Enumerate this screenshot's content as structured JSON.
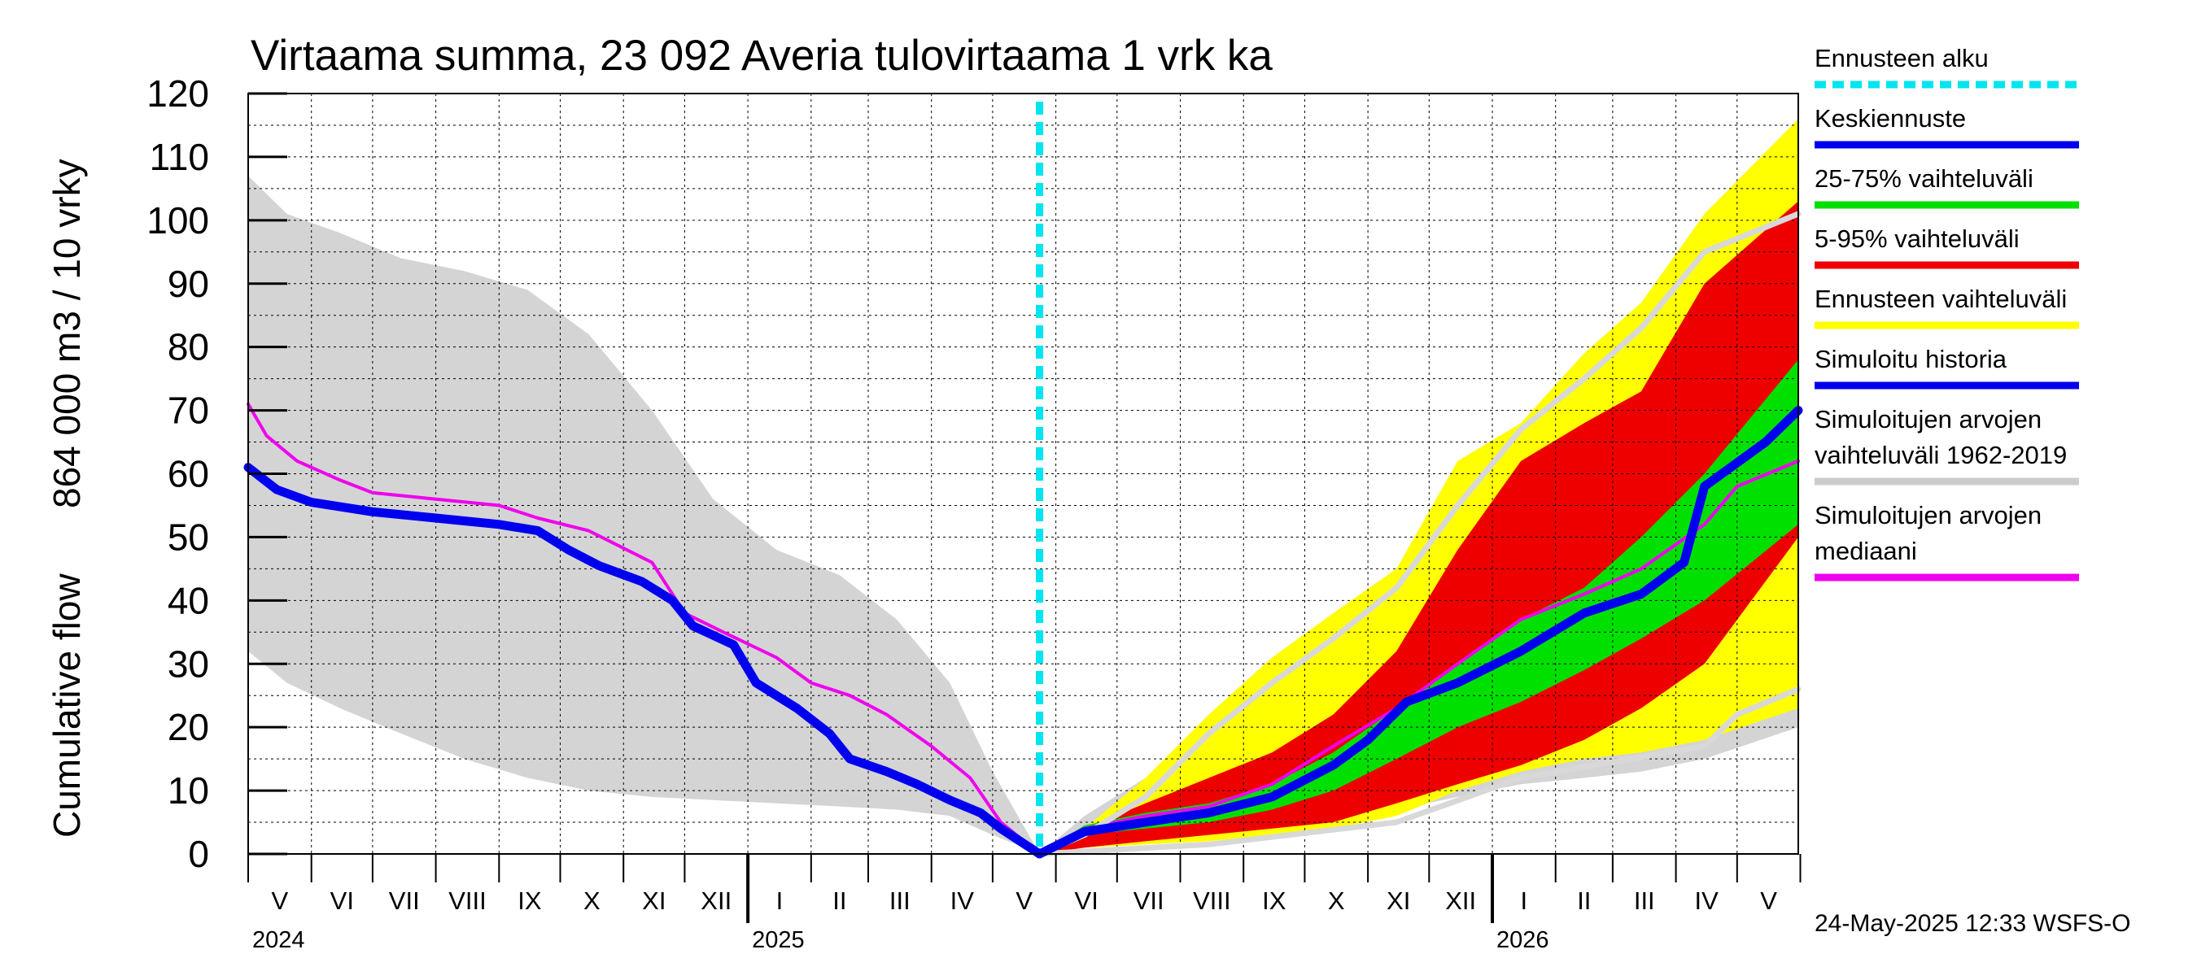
{
  "chart_data": {
    "type": "area",
    "title": "Virtaama summa, 23 092 Averia tulovirtaama 1 vrk ka",
    "ylabel_left": "Cumulative flow",
    "ylabel_right": "864 000 m3 / 10 vrky",
    "ylim": [
      0,
      120
    ],
    "y_ticks": [
      "0",
      "10",
      "20",
      "30",
      "40",
      "50",
      "60",
      "70",
      "80",
      "90",
      "100",
      "110",
      "120"
    ],
    "grid": true,
    "x_start": "2024-05-01",
    "x_end": "2026-05-31",
    "forecast_start": "2025-05-24",
    "month_labels": [
      "V",
      "VI",
      "VII",
      "VIII",
      "IX",
      "X",
      "XI",
      "XII",
      "I",
      "II",
      "III",
      "IV",
      "V",
      "VI",
      "VII",
      "VIII",
      "IX",
      "X",
      "XI",
      "XII",
      "I",
      "II",
      "III",
      "IV",
      "V"
    ],
    "year_labels": [
      "2024",
      "2025",
      "2026"
    ],
    "legend_position": "right",
    "legend": [
      {
        "label": "Ennusteen alku",
        "color": "#00e5f0",
        "style": "dashed"
      },
      {
        "label": "Keskiennuste",
        "color": "#0000ee",
        "style": "solid"
      },
      {
        "label": "25-75% vaihteluväli",
        "color": "#00e000",
        "style": "solid"
      },
      {
        "label": "5-95% vaihteluväli",
        "color": "#ee0000",
        "style": "solid"
      },
      {
        "label": "Ennusteen vaihteluväli",
        "color": "#ffff00",
        "style": "solid"
      },
      {
        "label": "Simuloitu historia",
        "color": "#0000ee",
        "style": "solid"
      },
      {
        "label": "Simuloitujen arvojen vaihteluväli 1962-2019",
        "line1": "Simuloitujen arvojen",
        "line2": "vaihteluväli 1962-2019",
        "color": "#cccccc",
        "style": "solid"
      },
      {
        "label": "Simuloitujen arvojen mediaani",
        "line1": "Simuloitujen arvojen",
        "line2": "mediaani",
        "color": "#ee00ee",
        "style": "solid"
      }
    ],
    "series": [
      {
        "name": "Simuloitujen arvojen vaihteluväli 1962-2019",
        "kind": "band",
        "color": "#d4d4d4",
        "points": [
          {
            "x": "2024-05-01",
            "low": 32,
            "high": 107
          },
          {
            "x": "2024-05-20",
            "low": 27,
            "high": 101
          },
          {
            "x": "2024-06-15",
            "low": 23,
            "high": 98
          },
          {
            "x": "2024-07-15",
            "low": 19,
            "high": 94
          },
          {
            "x": "2024-08-15",
            "low": 15,
            "high": 92
          },
          {
            "x": "2024-09-15",
            "low": 12,
            "high": 89
          },
          {
            "x": "2024-10-15",
            "low": 10,
            "high": 82
          },
          {
            "x": "2024-11-15",
            "low": 9,
            "high": 70
          },
          {
            "x": "2024-12-15",
            "low": 8.5,
            "high": 56
          },
          {
            "x": "2025-01-15",
            "low": 8,
            "high": 48
          },
          {
            "x": "2025-02-15",
            "low": 7.5,
            "high": 44
          },
          {
            "x": "2025-03-15",
            "low": 7,
            "high": 37
          },
          {
            "x": "2025-04-10",
            "low": 6,
            "high": 27
          },
          {
            "x": "2025-05-01",
            "low": 3,
            "high": 13
          },
          {
            "x": "2025-05-24",
            "low": 0,
            "high": 0
          },
          {
            "x": "2025-06-15",
            "low": 1,
            "high": 6
          },
          {
            "x": "2025-07-15",
            "low": 2,
            "high": 12
          },
          {
            "x": "2025-08-15",
            "low": 3,
            "high": 20
          },
          {
            "x": "2025-09-15",
            "low": 4,
            "high": 27
          },
          {
            "x": "2025-10-15",
            "low": 5,
            "high": 35
          },
          {
            "x": "2025-11-15",
            "low": 7,
            "high": 45
          },
          {
            "x": "2025-12-15",
            "low": 9,
            "high": 57
          },
          {
            "x": "2026-01-15",
            "low": 11,
            "high": 66
          },
          {
            "x": "2026-02-15",
            "low": 12,
            "high": 71
          },
          {
            "x": "2026-03-15",
            "low": 13,
            "high": 77
          },
          {
            "x": "2026-04-15",
            "low": 15,
            "high": 88
          },
          {
            "x": "2026-05-31",
            "low": 20,
            "high": 101
          }
        ]
      },
      {
        "name": "Ennusteen vaihteluväli",
        "kind": "band",
        "color": "#ffff00",
        "points": [
          {
            "x": "2025-05-24",
            "low": 0,
            "high": 0
          },
          {
            "x": "2025-06-15",
            "low": 1,
            "high": 4
          },
          {
            "x": "2025-07-15",
            "low": 1.5,
            "high": 12
          },
          {
            "x": "2025-08-15",
            "low": 2,
            "high": 22
          },
          {
            "x": "2025-09-15",
            "low": 3,
            "high": 31
          },
          {
            "x": "2025-10-15",
            "low": 4,
            "high": 38
          },
          {
            "x": "2025-11-15",
            "low": 6,
            "high": 45
          },
          {
            "x": "2025-12-15",
            "low": 10,
            "high": 62
          },
          {
            "x": "2026-01-15",
            "low": 13,
            "high": 68
          },
          {
            "x": "2026-02-15",
            "low": 15,
            "high": 79
          },
          {
            "x": "2026-03-15",
            "low": 16,
            "high": 87
          },
          {
            "x": "2026-04-15",
            "low": 18,
            "high": 101
          },
          {
            "x": "2026-05-31",
            "low": 23,
            "high": 116
          }
        ]
      },
      {
        "name": "5-95% vaihteluväli",
        "kind": "band",
        "color": "#ee0000",
        "points": [
          {
            "x": "2025-05-24",
            "low": 0,
            "high": 0
          },
          {
            "x": "2025-06-15",
            "low": 1,
            "high": 4
          },
          {
            "x": "2025-07-15",
            "low": 2,
            "high": 8
          },
          {
            "x": "2025-08-15",
            "low": 3,
            "high": 12
          },
          {
            "x": "2025-09-15",
            "low": 4,
            "high": 16
          },
          {
            "x": "2025-10-15",
            "low": 5,
            "high": 22
          },
          {
            "x": "2025-11-15",
            "low": 8,
            "high": 32
          },
          {
            "x": "2025-12-15",
            "low": 11,
            "high": 48
          },
          {
            "x": "2026-01-15",
            "low": 14,
            "high": 62
          },
          {
            "x": "2026-02-15",
            "low": 18,
            "high": 68
          },
          {
            "x": "2026-03-15",
            "low": 23,
            "high": 73
          },
          {
            "x": "2026-04-15",
            "low": 30,
            "high": 90
          },
          {
            "x": "2026-05-31",
            "low": 50,
            "high": 103
          }
        ]
      },
      {
        "name": "25-75% vaihteluväli",
        "kind": "band",
        "color": "#00e000",
        "points": [
          {
            "x": "2025-05-24",
            "low": 0,
            "high": 0
          },
          {
            "x": "2025-06-15",
            "low": 3,
            "high": 4.5
          },
          {
            "x": "2025-07-15",
            "low": 4,
            "high": 6.5
          },
          {
            "x": "2025-08-15",
            "low": 5,
            "high": 8
          },
          {
            "x": "2025-09-15",
            "low": 7,
            "high": 11
          },
          {
            "x": "2025-10-15",
            "low": 10,
            "high": 16
          },
          {
            "x": "2025-11-15",
            "low": 15,
            "high": 23
          },
          {
            "x": "2025-12-15",
            "low": 20,
            "high": 30
          },
          {
            "x": "2026-01-15",
            "low": 24,
            "high": 37
          },
          {
            "x": "2026-02-15",
            "low": 29,
            "high": 42
          },
          {
            "x": "2026-03-15",
            "low": 34,
            "high": 50
          },
          {
            "x": "2026-04-15",
            "low": 40,
            "high": 60
          },
          {
            "x": "2026-05-31",
            "low": 52,
            "high": 78
          }
        ]
      },
      {
        "name": "Simuloitujen arvojen mediaani",
        "kind": "line",
        "color": "#ee00ee",
        "points": [
          {
            "x": "2024-05-01",
            "y": 71
          },
          {
            "x": "2024-05-10",
            "y": 66
          },
          {
            "x": "2024-05-25",
            "y": 62
          },
          {
            "x": "2024-06-15",
            "y": 59
          },
          {
            "x": "2024-07-01",
            "y": 57
          },
          {
            "x": "2024-08-01",
            "y": 56
          },
          {
            "x": "2024-09-01",
            "y": 55
          },
          {
            "x": "2024-09-20",
            "y": 53
          },
          {
            "x": "2024-10-15",
            "y": 51
          },
          {
            "x": "2024-11-15",
            "y": 46
          },
          {
            "x": "2024-12-01",
            "y": 38
          },
          {
            "x": "2024-12-20",
            "y": 35
          },
          {
            "x": "2025-01-15",
            "y": 31
          },
          {
            "x": "2025-02-01",
            "y": 27
          },
          {
            "x": "2025-02-20",
            "y": 25
          },
          {
            "x": "2025-03-10",
            "y": 22
          },
          {
            "x": "2025-04-01",
            "y": 17
          },
          {
            "x": "2025-04-20",
            "y": 12
          },
          {
            "x": "2025-05-05",
            "y": 5
          },
          {
            "x": "2025-05-24",
            "y": 0
          },
          {
            "x": "2025-06-15",
            "y": 4
          },
          {
            "x": "2025-07-15",
            "y": 6
          },
          {
            "x": "2025-08-15",
            "y": 7.5
          },
          {
            "x": "2025-09-15",
            "y": 11
          },
          {
            "x": "2025-10-15",
            "y": 17
          },
          {
            "x": "2025-11-15",
            "y": 23
          },
          {
            "x": "2025-12-15",
            "y": 30
          },
          {
            "x": "2026-01-15",
            "y": 37
          },
          {
            "x": "2026-02-15",
            "y": 41
          },
          {
            "x": "2026-03-15",
            "y": 45
          },
          {
            "x": "2026-04-15",
            "y": 52
          },
          {
            "x": "2026-05-01",
            "y": 58
          },
          {
            "x": "2026-05-31",
            "y": 62
          }
        ]
      },
      {
        "name": "Ennusteen yläraja (harmaa viiva)",
        "kind": "line",
        "color": "#d8d8d8",
        "points": [
          {
            "x": "2025-05-24",
            "y": 0
          },
          {
            "x": "2025-06-15",
            "y": 3
          },
          {
            "x": "2025-07-15",
            "y": 9
          },
          {
            "x": "2025-08-15",
            "y": 19
          },
          {
            "x": "2025-09-15",
            "y": 27
          },
          {
            "x": "2025-10-15",
            "y": 34
          },
          {
            "x": "2025-11-15",
            "y": 42
          },
          {
            "x": "2025-12-15",
            "y": 55
          },
          {
            "x": "2026-01-15",
            "y": 67
          },
          {
            "x": "2026-02-15",
            "y": 75
          },
          {
            "x": "2026-03-15",
            "y": 83
          },
          {
            "x": "2026-04-15",
            "y": 95
          },
          {
            "x": "2026-05-31",
            "y": 101
          }
        ]
      },
      {
        "name": "Ennusteen alaraja (harmaa viiva)",
        "kind": "line",
        "color": "#d8d8d8",
        "points": [
          {
            "x": "2025-05-24",
            "y": 0
          },
          {
            "x": "2025-08-15",
            "y": 1.5
          },
          {
            "x": "2025-11-15",
            "y": 5
          },
          {
            "x": "2026-01-15",
            "y": 12
          },
          {
            "x": "2026-04-15",
            "y": 17
          },
          {
            "x": "2026-05-01",
            "y": 22
          },
          {
            "x": "2026-05-31",
            "y": 26
          }
        ]
      },
      {
        "name": "Simuloitu historia",
        "kind": "line",
        "color": "#0000ee",
        "points": [
          {
            "x": "2024-05-01",
            "y": 61
          },
          {
            "x": "2024-05-15",
            "y": 57.5
          },
          {
            "x": "2024-06-01",
            "y": 55.5
          },
          {
            "x": "2024-07-01",
            "y": 54
          },
          {
            "x": "2024-08-01",
            "y": 53
          },
          {
            "x": "2024-09-01",
            "y": 52
          },
          {
            "x": "2024-09-20",
            "y": 51
          },
          {
            "x": "2024-10-05",
            "y": 48
          },
          {
            "x": "2024-10-20",
            "y": 45.5
          },
          {
            "x": "2024-11-10",
            "y": 43
          },
          {
            "x": "2024-11-25",
            "y": 40
          },
          {
            "x": "2024-12-05",
            "y": 36
          },
          {
            "x": "2024-12-25",
            "y": 33
          },
          {
            "x": "2025-01-05",
            "y": 27
          },
          {
            "x": "2025-01-25",
            "y": 23
          },
          {
            "x": "2025-02-10",
            "y": 19
          },
          {
            "x": "2025-02-20",
            "y": 15
          },
          {
            "x": "2025-03-10",
            "y": 13
          },
          {
            "x": "2025-03-25",
            "y": 11
          },
          {
            "x": "2025-04-10",
            "y": 8.5
          },
          {
            "x": "2025-04-25",
            "y": 6.5
          },
          {
            "x": "2025-05-05",
            "y": 4
          },
          {
            "x": "2025-05-24",
            "y": 0
          }
        ]
      },
      {
        "name": "Keskiennuste",
        "kind": "line",
        "color": "#0000ee",
        "points": [
          {
            "x": "2025-05-24",
            "y": 0
          },
          {
            "x": "2025-06-15",
            "y": 3.5
          },
          {
            "x": "2025-07-15",
            "y": 5
          },
          {
            "x": "2025-08-15",
            "y": 6.5
          },
          {
            "x": "2025-09-15",
            "y": 9
          },
          {
            "x": "2025-10-15",
            "y": 14
          },
          {
            "x": "2025-11-01",
            "y": 18
          },
          {
            "x": "2025-11-20",
            "y": 24
          },
          {
            "x": "2025-12-15",
            "y": 27
          },
          {
            "x": "2026-01-15",
            "y": 32
          },
          {
            "x": "2026-02-15",
            "y": 38
          },
          {
            "x": "2026-03-15",
            "y": 41
          },
          {
            "x": "2026-04-05",
            "y": 46
          },
          {
            "x": "2026-04-15",
            "y": 58
          },
          {
            "x": "2026-05-15",
            "y": 65
          },
          {
            "x": "2026-05-31",
            "y": 70
          }
        ]
      }
    ]
  },
  "footer": {
    "timestamp": "24-May-2025 12:33 WSFS-O"
  }
}
